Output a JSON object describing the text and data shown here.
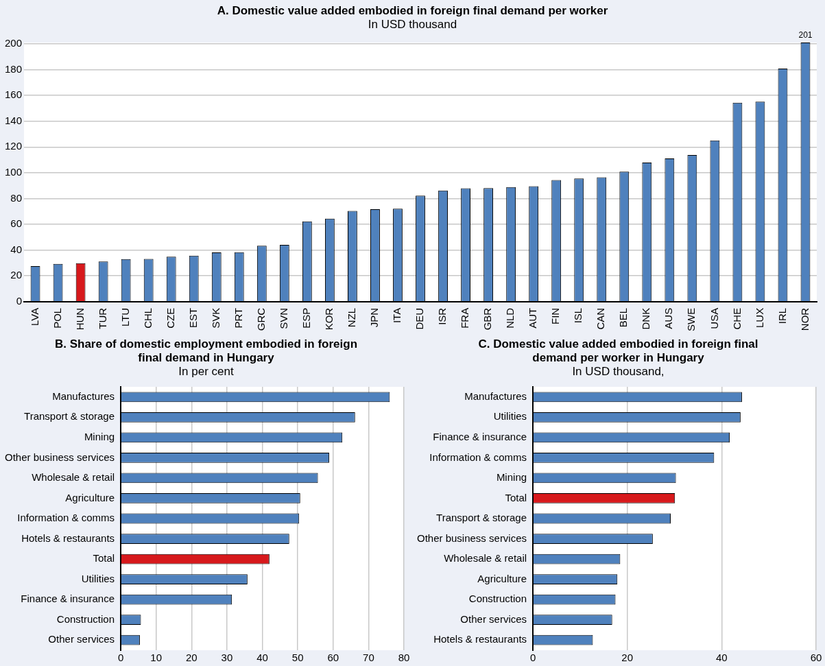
{
  "chart_data": [
    {
      "type": "bar",
      "title": "A. Domestic value added embodied in foreign final demand per worker",
      "subtitle": "In USD thousand",
      "categories": [
        "LVA",
        "POL",
        "HUN",
        "TUR",
        "LTU",
        "CHL",
        "CZE",
        "EST",
        "SVK",
        "PRT",
        "GRC",
        "SVN",
        "ESP",
        "KOR",
        "NZL",
        "JPN",
        "ITA",
        "DEU",
        "ISR",
        "FRA",
        "GBR",
        "NLD",
        "AUT",
        "FIN",
        "ISL",
        "CAN",
        "BEL",
        "DNK",
        "AUS",
        "SWE",
        "USA",
        "CHE",
        "LUX",
        "IRL",
        "NOR"
      ],
      "values": [
        27.6,
        29.3,
        29.9,
        31.2,
        33.0,
        33.2,
        34.9,
        35.7,
        38.2,
        38.4,
        43.4,
        44.0,
        62.3,
        64.4,
        70.4,
        71.7,
        72.1,
        82.3,
        86.2,
        87.9,
        88.1,
        88.9,
        89.6,
        94.4,
        95.6,
        96.5,
        100.8,
        107.9,
        111.1,
        113.8,
        125.1,
        154.3,
        155.1,
        180.8,
        201
      ],
      "colors": [
        "#4f81bd",
        "#4f81bd",
        "#d7191c",
        "#4f81bd",
        "#4f81bd",
        "#4f81bd",
        "#4f81bd",
        "#4f81bd",
        "#4f81bd",
        "#4f81bd",
        "#4f81bd",
        "#4f81bd",
        "#4f81bd",
        "#4f81bd",
        "#4f81bd",
        "#4f81bd",
        "#4f81bd",
        "#4f81bd",
        "#4f81bd",
        "#4f81bd",
        "#4f81bd",
        "#4f81bd",
        "#4f81bd",
        "#4f81bd",
        "#4f81bd",
        "#4f81bd",
        "#4f81bd",
        "#4f81bd",
        "#4f81bd",
        "#4f81bd",
        "#4f81bd",
        "#4f81bd",
        "#4f81bd",
        "#4f81bd",
        "#4f81bd"
      ],
      "value_labels": [
        null,
        null,
        null,
        null,
        null,
        null,
        null,
        null,
        null,
        null,
        null,
        null,
        null,
        null,
        null,
        null,
        null,
        null,
        null,
        null,
        null,
        null,
        null,
        null,
        null,
        null,
        null,
        null,
        null,
        null,
        null,
        null,
        null,
        null,
        "201"
      ],
      "ylim": [
        0,
        201
      ],
      "yticks": [
        0,
        20,
        40,
        60,
        80,
        100,
        120,
        140,
        160,
        180,
        200
      ],
      "grid": "y"
    },
    {
      "type": "bar",
      "orientation": "horizontal",
      "title": "B. Share of domestic employment embodied in foreign final demand in Hungary",
      "subtitle": "In per cent",
      "categories": [
        "Manufactures",
        "Transport & storage",
        "Mining",
        "Other business services",
        "Wholesale & retail",
        "Agriculture",
        "Information & comms",
        "Hotels & restaurants",
        "Total",
        "Utilities",
        "Finance & insurance",
        "Construction",
        "Other services"
      ],
      "values": [
        76.0,
        66.2,
        62.6,
        58.9,
        55.7,
        50.7,
        50.4,
        47.6,
        42.0,
        35.8,
        31.4,
        5.7,
        5.4
      ],
      "colors": [
        "#4f81bd",
        "#4f81bd",
        "#4f81bd",
        "#4f81bd",
        "#4f81bd",
        "#4f81bd",
        "#4f81bd",
        "#4f81bd",
        "#d7191c",
        "#4f81bd",
        "#4f81bd",
        "#4f81bd",
        "#4f81bd"
      ],
      "xlim": [
        0,
        80
      ],
      "xticks": [
        0,
        10,
        20,
        30,
        40,
        50,
        60,
        70,
        80
      ],
      "grid": "x"
    },
    {
      "type": "bar",
      "orientation": "horizontal",
      "title": "C. Domestic value added embodied in foreign final demand per worker in Hungary",
      "subtitle": "In USD thousand,",
      "categories": [
        "Manufactures",
        "Utilities",
        "Finance & insurance",
        "Information & comms",
        "Mining",
        "Total",
        "Transport & storage",
        "Other business services",
        "Wholesale & retail",
        "Agriculture",
        "Construction",
        "Other services",
        "Hotels & restaurants"
      ],
      "values": [
        44.3,
        44.0,
        41.7,
        38.4,
        30.3,
        30.1,
        29.2,
        25.4,
        18.5,
        17.9,
        17.5,
        16.8,
        12.7
      ],
      "colors": [
        "#4f81bd",
        "#4f81bd",
        "#4f81bd",
        "#4f81bd",
        "#4f81bd",
        "#d7191c",
        "#4f81bd",
        "#4f81bd",
        "#4f81bd",
        "#4f81bd",
        "#4f81bd",
        "#4f81bd",
        "#4f81bd"
      ],
      "xlim": [
        0,
        60
      ],
      "xticks": [
        0,
        20,
        40,
        60
      ],
      "grid": "x"
    }
  ]
}
